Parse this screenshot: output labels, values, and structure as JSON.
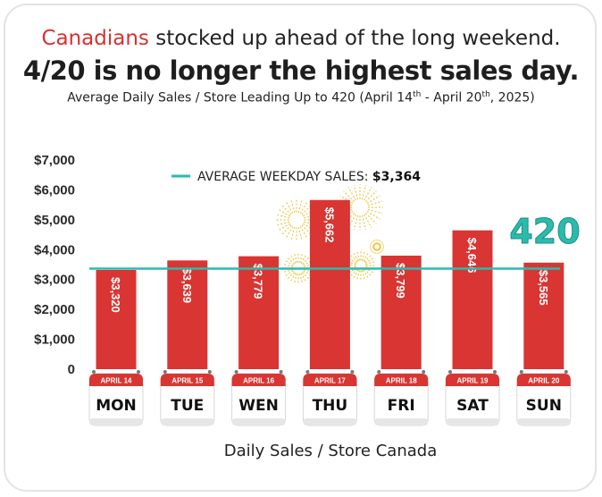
{
  "header": {
    "line1_highlight": "Canadians",
    "line1_rest": " stocked up ahead of the long weekend.",
    "line2": "4/20 is no longer the highest sales day.",
    "line3_prefix": "Average Daily Sales / Store Leading Up to 420 (April 14",
    "line3_sup1": "th",
    "line3_mid": " - April 20",
    "line3_sup2": "th",
    "line3_suffix": ", 2025)"
  },
  "chart_data": {
    "type": "bar",
    "title": "Average Daily Sales / Store Leading Up to 420 (April 14th - April 20th, 2025)",
    "xlabel": "Daily Sales / Store Canada",
    "ylabel": "",
    "ylim": [
      0,
      7000
    ],
    "yticks": [
      0,
      1000,
      2000,
      3000,
      4000,
      5000,
      6000,
      7000
    ],
    "ytick_labels": [
      "0",
      "$1,000",
      "$2,000",
      "$3,000",
      "$4,000",
      "$5,000",
      "$6,000",
      "$7,000"
    ],
    "categories": [
      "MON",
      "TUE",
      "WEN",
      "THU",
      "FRI",
      "SAT",
      "SUN"
    ],
    "dates": [
      "APRIL 14",
      "APRIL 15",
      "APRIL 16",
      "APRIL 17",
      "APRIL 18",
      "APRIL 19",
      "APRIL 20"
    ],
    "values": [
      3320,
      3639,
      3779,
      5662,
      3799,
      4646,
      3565
    ],
    "value_labels": [
      "$3,320",
      "$3,639",
      "$3,779",
      "$5,662",
      "$3,799",
      "$4,646",
      "$3,565"
    ],
    "reference_line": {
      "label": "AVERAGE WEEKDAY SALES:",
      "value_label": "$3,364",
      "value": 3364
    },
    "annotation": "420",
    "colors": {
      "bar": "#d93532",
      "reference": "#2bbbad",
      "text": "#222222"
    }
  }
}
